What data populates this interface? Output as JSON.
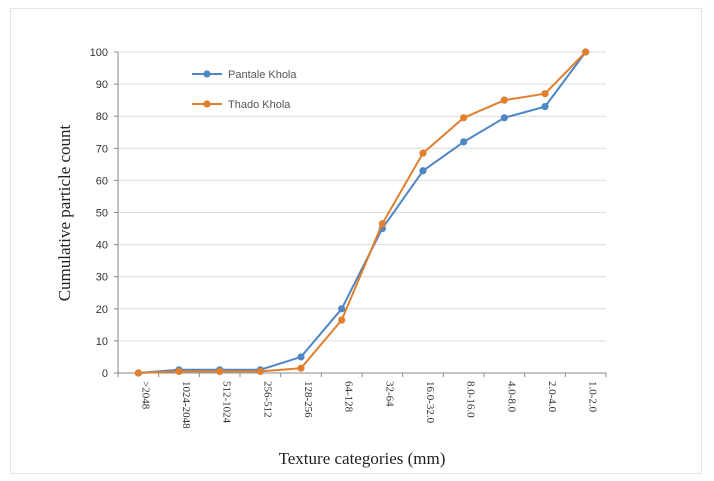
{
  "chart_data": {
    "type": "line",
    "title": "",
    "xlabel": "Texture categories (mm)",
    "ylabel": "Cumulative particle count",
    "categories": [
      ">2048",
      "1024-2048",
      "512-1024",
      "256-512",
      "128-256",
      "64-128",
      "32-64",
      "16.0-32.0",
      "8.0-16.0",
      "4.0-8.0",
      "2.0-4.0",
      "1.0-2.0"
    ],
    "ylim": [
      0,
      100
    ],
    "yticks": [
      0,
      10,
      20,
      30,
      40,
      50,
      60,
      70,
      80,
      90,
      100
    ],
    "grid": true,
    "legend_position": "top-left",
    "series": [
      {
        "name": "Pantale Khola",
        "color": "#4f86c6",
        "values": [
          0,
          1,
          1,
          1,
          5,
          20,
          45,
          63,
          72,
          79.5,
          83,
          100
        ]
      },
      {
        "name": "Thado Khola",
        "color": "#e07f2e",
        "values": [
          0,
          0.5,
          0.5,
          0.5,
          1.5,
          16.5,
          46.5,
          68.5,
          79.5,
          85,
          87,
          100
        ]
      }
    ]
  }
}
